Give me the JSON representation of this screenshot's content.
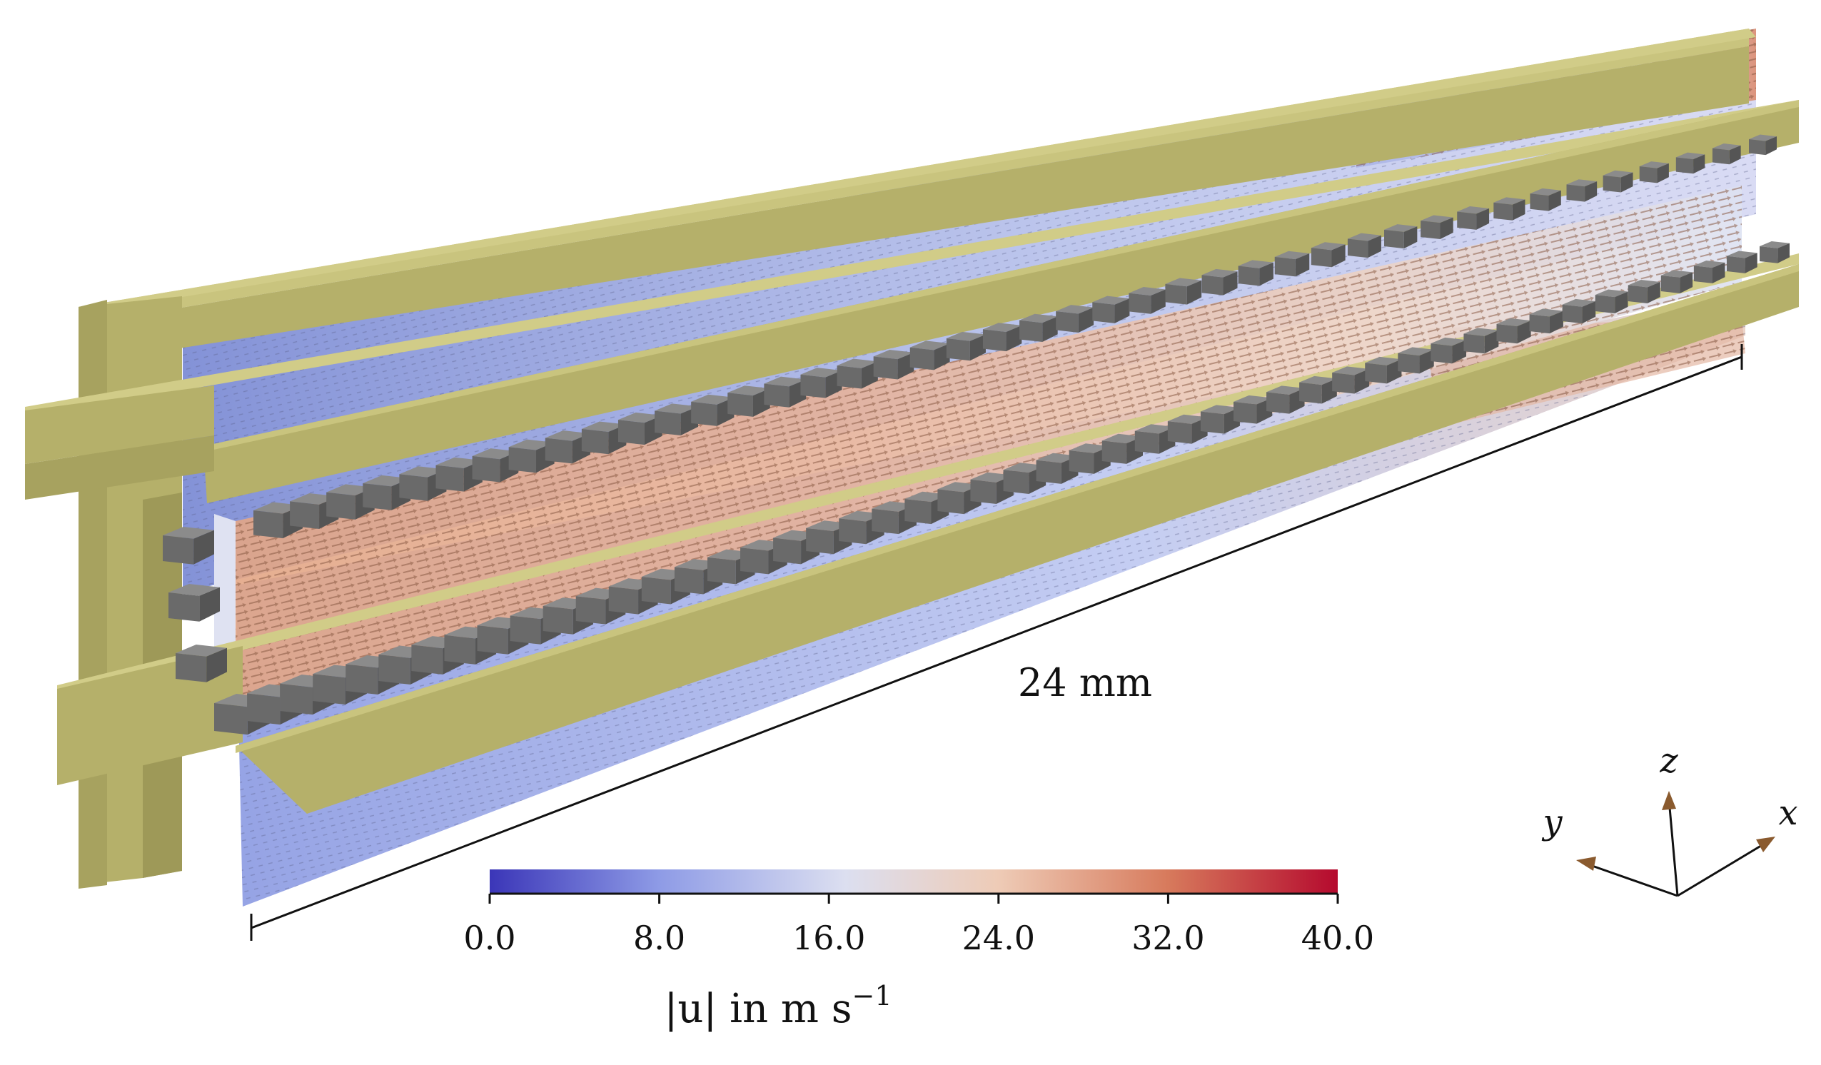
{
  "scale_bar": {
    "label": "24 mm"
  },
  "axes": {
    "x_label": "x",
    "y_label": "y",
    "z_label": "z"
  },
  "colorbar": {
    "ticks": [
      "0.0",
      "8.0",
      "16.0",
      "24.0",
      "32.0",
      "40.0"
    ],
    "title": "|u| in m s",
    "title_exponent": "−1",
    "min": 0.0,
    "max": 40.0,
    "colors": [
      "#3b36b8",
      "#8e9be6",
      "#dcdff0",
      "#eecbb6",
      "#d77a5c",
      "#b50a2e"
    ]
  },
  "colors": {
    "rail": "#b5b06a",
    "rail_top": "#c9c47e",
    "rail_side": "#8f8a4e",
    "pillar": "#6b6b6b",
    "arrow": "#7a5230",
    "slab_low": "#7f8ed8",
    "slab_high": "#d2805f"
  }
}
